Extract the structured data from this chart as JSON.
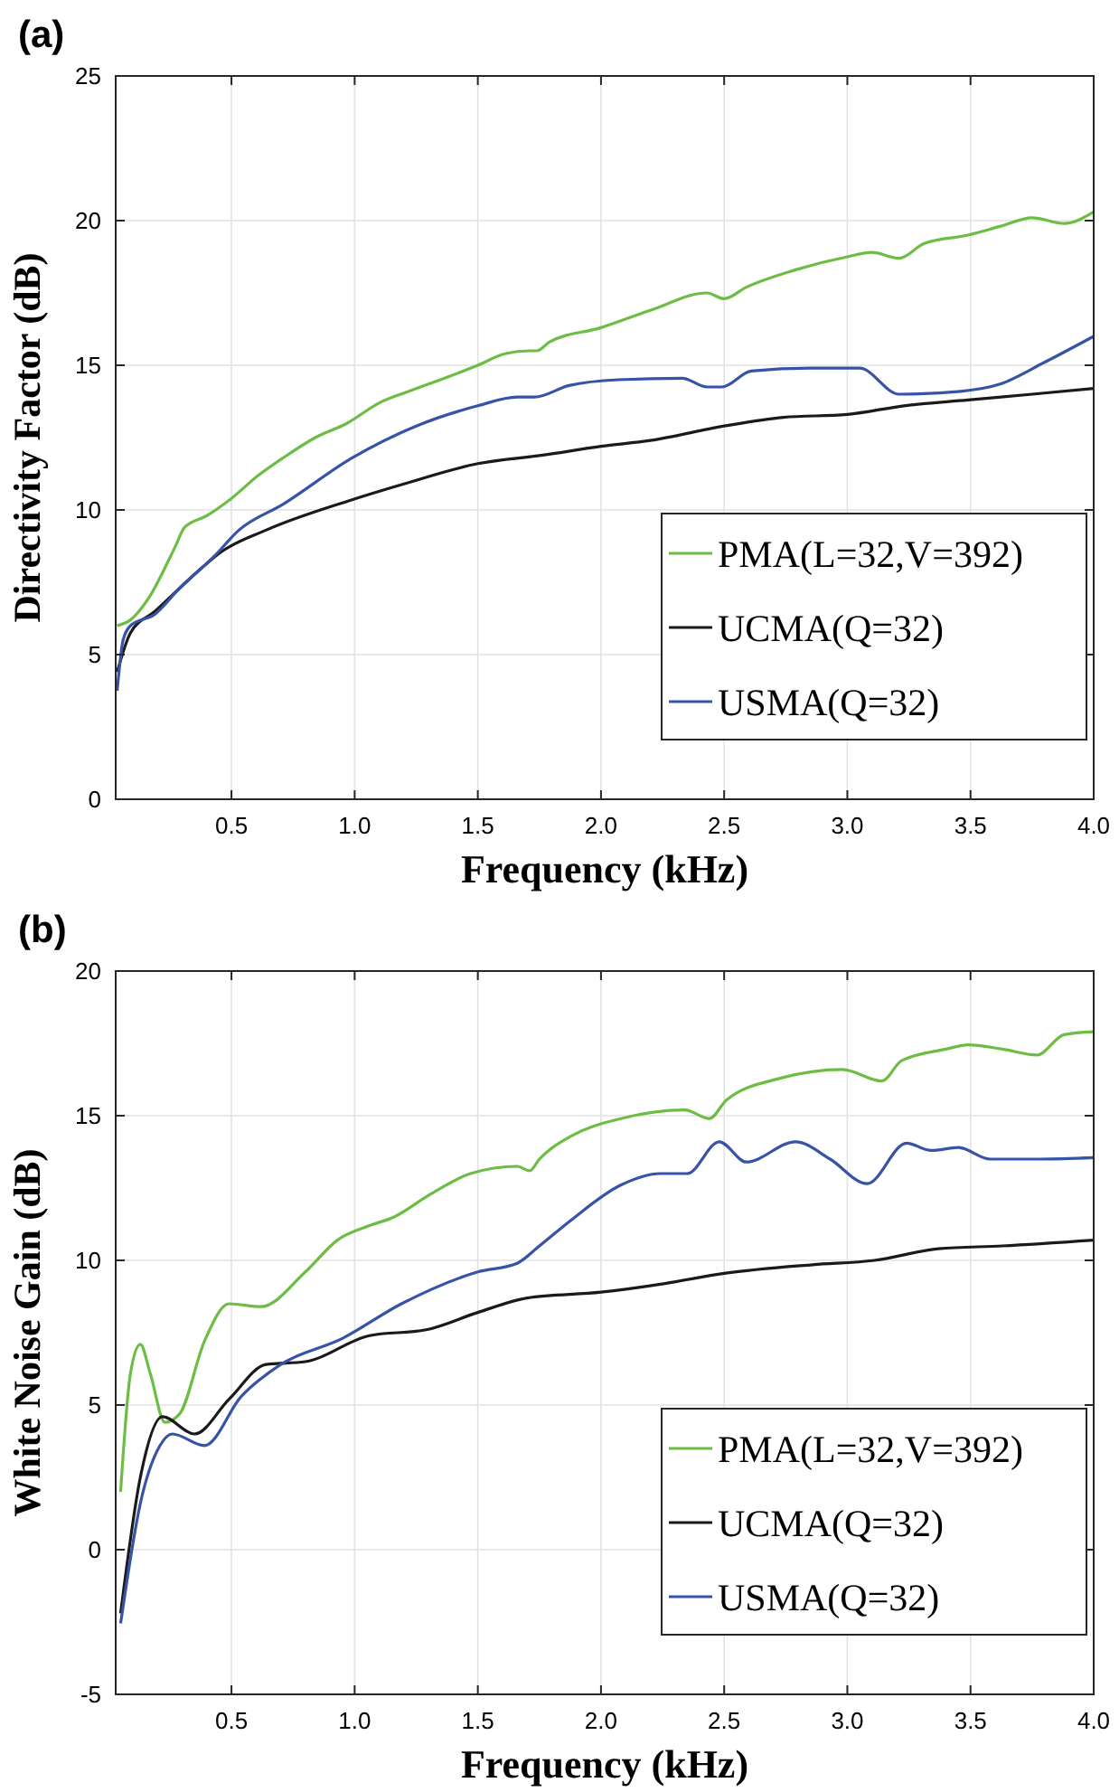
{
  "chart_data": [
    {
      "type": "line",
      "title": "(a)",
      "xlabel": "Frequency (kHz)",
      "ylabel": "Directivity Factor (dB)",
      "xlim": [
        0.03,
        4
      ],
      "ylim": [
        0,
        25
      ],
      "xticks": [
        {
          "value": 0.5,
          "label": "0.5"
        },
        {
          "value": 1,
          "label": "1.0"
        },
        {
          "value": 1.5,
          "label": "1.5"
        },
        {
          "value": 2,
          "label": "2.0"
        },
        {
          "value": 2.5,
          "label": "2.5"
        },
        {
          "value": 3,
          "label": "3.0"
        },
        {
          "value": 3.5,
          "label": "3.5"
        },
        {
          "value": 4,
          "label": "4.0"
        }
      ],
      "yticks": [
        0,
        5,
        10,
        15,
        20,
        25
      ],
      "grid": true,
      "legend": "bottom right",
      "line_style": "solid",
      "marker": "none",
      "series": [
        {
          "name": "PMA(L=32,V=392)",
          "color": "#6dbd45",
          "x": [
            0.036,
            0.09,
            0.16,
            0.27,
            0.31,
            0.4,
            0.5,
            0.61,
            0.71,
            0.84,
            0.97,
            1.1,
            1.22,
            1.38,
            1.5,
            1.61,
            1.71,
            1.74,
            1.79,
            2.0,
            2.2,
            2.43,
            2.5,
            2.59,
            2.79,
            3.0,
            3.1,
            3.21,
            3.31,
            3.49,
            3.62,
            3.75,
            3.88,
            4.0
          ],
          "values": [
            6.0,
            6.2,
            6.9,
            8.7,
            9.4,
            9.8,
            10.4,
            11.2,
            11.8,
            12.5,
            13.0,
            13.7,
            14.1,
            14.6,
            15.0,
            15.4,
            15.5,
            15.5,
            15.8,
            16.3,
            16.9,
            17.5,
            17.3,
            17.7,
            18.3,
            18.75,
            18.9,
            18.7,
            19.2,
            19.5,
            19.8,
            20.1,
            19.9,
            20.3
          ]
        },
        {
          "name": "UCMA(Q=32)",
          "color": "#1a1a1a",
          "x": [
            0.036,
            0.09,
            0.19,
            0.38,
            0.45,
            0.64,
            0.97,
            1.2,
            1.5,
            1.77,
            2.0,
            2.2,
            2.5,
            2.74,
            3.0,
            3.23,
            3.49,
            3.75,
            4.0
          ],
          "values": [
            4.4,
            5.75,
            6.5,
            8.0,
            8.5,
            9.3,
            10.3,
            10.9,
            11.6,
            11.9,
            12.2,
            12.4,
            12.9,
            13.2,
            13.3,
            13.6,
            13.8,
            14.0,
            14.2
          ]
        },
        {
          "name": "USMA(Q=32)",
          "color": "#3653a8",
          "x": [
            0.036,
            0.06,
            0.09,
            0.19,
            0.29,
            0.43,
            0.53,
            0.71,
            0.99,
            1.25,
            1.5,
            1.66,
            1.73,
            1.87,
            2.07,
            2.33,
            2.43,
            2.49,
            2.61,
            2.85,
            3.05,
            3.21,
            3.46,
            3.62,
            3.8,
            4.0
          ],
          "values": [
            3.75,
            5.5,
            6.0,
            6.4,
            7.3,
            8.4,
            9.3,
            10.2,
            11.8,
            12.9,
            13.6,
            13.9,
            13.9,
            14.3,
            14.5,
            14.55,
            14.25,
            14.25,
            14.8,
            14.9,
            14.9,
            14.0,
            14.1,
            14.35,
            15.1,
            16.0
          ]
        }
      ]
    },
    {
      "type": "line",
      "title": "(b)",
      "xlabel": "Frequency (kHz)",
      "ylabel": "White Noise Gain (dB)",
      "xlim": [
        0.03,
        4
      ],
      "ylim": [
        -5,
        20
      ],
      "xticks": [
        {
          "value": 0.5,
          "label": "0.5"
        },
        {
          "value": 1,
          "label": "1.0"
        },
        {
          "value": 1.5,
          "label": "1.5"
        },
        {
          "value": 2,
          "label": "2.0"
        },
        {
          "value": 2.5,
          "label": "2.5"
        },
        {
          "value": 3,
          "label": "3.0"
        },
        {
          "value": 3.5,
          "label": "3.5"
        },
        {
          "value": 4,
          "label": "4.0"
        }
      ],
      "yticks": [
        -5,
        0,
        5,
        10,
        15,
        20
      ],
      "grid": true,
      "legend": "bottom right",
      "line_style": "solid",
      "marker": "none",
      "series": [
        {
          "name": "PMA(L=32,V=392)",
          "color": "#6dbd45",
          "x": [
            0.05,
            0.09,
            0.13,
            0.17,
            0.23,
            0.29,
            0.39,
            0.49,
            0.62,
            0.8,
            0.93,
            1.06,
            1.16,
            1.31,
            1.47,
            1.66,
            1.71,
            1.75,
            1.88,
            2.08,
            2.34,
            2.44,
            2.51,
            2.73,
            2.98,
            3.14,
            3.22,
            3.4,
            3.49,
            3.63,
            3.77,
            3.88,
            4.0
          ],
          "values": [
            2.0,
            6.1,
            7.1,
            6.1,
            4.4,
            4.7,
            7.2,
            8.5,
            8.4,
            9.6,
            10.7,
            11.2,
            11.5,
            12.3,
            13.0,
            13.25,
            13.1,
            13.5,
            14.3,
            14.9,
            15.2,
            14.9,
            15.55,
            16.3,
            16.6,
            16.2,
            16.9,
            17.3,
            17.45,
            17.3,
            17.1,
            17.8,
            17.9
          ]
        },
        {
          "name": "UCMA(Q=32)",
          "color": "#1a1a1a",
          "x": [
            0.05,
            0.13,
            0.22,
            0.35,
            0.49,
            0.64,
            0.8,
            1.06,
            1.29,
            1.5,
            1.7,
            2.0,
            2.26,
            2.5,
            2.86,
            3.11,
            3.37,
            3.63,
            4.0
          ],
          "values": [
            -2.2,
            2.5,
            4.6,
            4.0,
            5.2,
            6.4,
            6.5,
            7.4,
            7.6,
            8.2,
            8.7,
            8.9,
            9.2,
            9.55,
            9.85,
            10.0,
            10.4,
            10.5,
            10.7
          ]
        },
        {
          "name": "USMA(Q=32)",
          "color": "#3653a8",
          "x": [
            0.05,
            0.13,
            0.21,
            0.26,
            0.39,
            0.54,
            0.7,
            0.95,
            1.19,
            1.5,
            1.66,
            1.75,
            1.88,
            2.08,
            2.24,
            2.35,
            2.48,
            2.59,
            2.79,
            2.93,
            3.08,
            3.24,
            3.34,
            3.45,
            3.58,
            3.78,
            4.0
          ],
          "values": [
            -2.55,
            1.6,
            3.6,
            4.0,
            3.6,
            5.3,
            6.4,
            7.3,
            8.5,
            9.6,
            9.9,
            10.5,
            11.4,
            12.6,
            13.0,
            13.0,
            14.1,
            13.4,
            14.1,
            13.5,
            12.65,
            14.05,
            13.8,
            13.9,
            13.5,
            13.5,
            13.55
          ]
        }
      ]
    }
  ]
}
